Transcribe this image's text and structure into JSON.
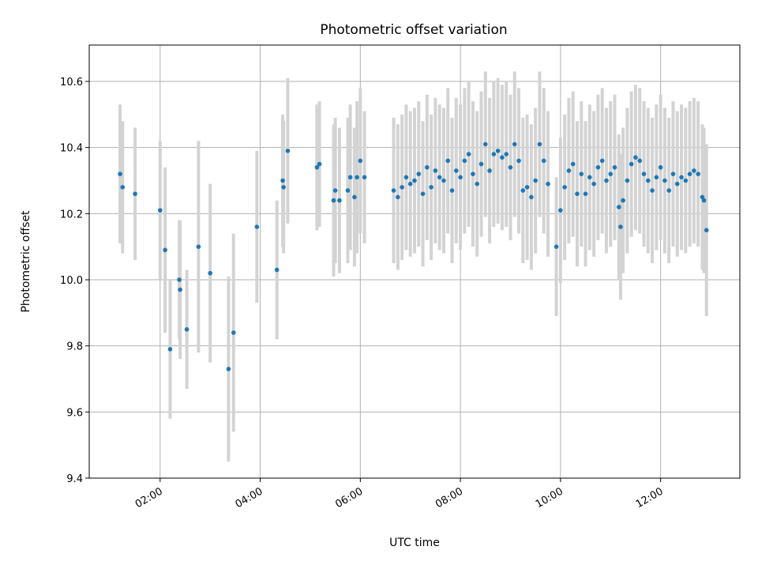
{
  "chart_data": {
    "type": "scatter",
    "title": "Photometric offset variation",
    "xlabel": "UTC time",
    "ylabel": "Photometric offset",
    "grid": true,
    "xlim": [
      "00:35",
      "13:35"
    ],
    "ylim": [
      9.4,
      10.71
    ],
    "x_ticks": [
      "02:00",
      "04:00",
      "06:00",
      "08:00",
      "10:00",
      "12:00"
    ],
    "y_ticks": [
      "9.4",
      "9.6",
      "9.8",
      "10.0",
      "10.2",
      "10.4",
      "10.6"
    ],
    "colors": {
      "point": "#1f77b4",
      "errorbar": "#d3d3d3",
      "grid": "#b0b0b0"
    },
    "series": [
      {
        "points": [
          {
            "t": "01:12",
            "y": 10.32,
            "err": 0.21
          },
          {
            "t": "01:15",
            "y": 10.28,
            "err": 0.2
          },
          {
            "t": "01:30",
            "y": 10.26,
            "err": 0.2
          },
          {
            "t": "02:00",
            "y": 10.21,
            "err": 0.21
          },
          {
            "t": "02:06",
            "y": 10.09,
            "err": 0.25
          },
          {
            "t": "02:12",
            "y": 9.79,
            "err": 0.21
          },
          {
            "t": "02:23",
            "y": 10.0,
            "err": 0.18
          },
          {
            "t": "02:24",
            "y": 9.97,
            "err": 0.21
          },
          {
            "t": "02:32",
            "y": 9.85,
            "err": 0.18
          },
          {
            "t": "02:46",
            "y": 10.1,
            "err": 0.32
          },
          {
            "t": "03:00",
            "y": 10.02,
            "err": 0.27
          },
          {
            "t": "03:22",
            "y": 9.73,
            "err": 0.28
          },
          {
            "t": "03:28",
            "y": 9.84,
            "err": 0.3
          },
          {
            "t": "03:56",
            "y": 10.16,
            "err": 0.23
          },
          {
            "t": "04:20",
            "y": 10.03,
            "err": 0.21
          },
          {
            "t": "04:27",
            "y": 10.3,
            "err": 0.2
          },
          {
            "t": "04:28",
            "y": 10.28,
            "err": 0.2
          },
          {
            "t": "04:33",
            "y": 10.39,
            "err": 0.22
          },
          {
            "t": "05:08",
            "y": 10.34,
            "err": 0.19
          },
          {
            "t": "05:11",
            "y": 10.35,
            "err": 0.19
          },
          {
            "t": "05:28",
            "y": 10.24,
            "err": 0.23
          },
          {
            "t": "05:30",
            "y": 10.27,
            "err": 0.22
          },
          {
            "t": "05:35",
            "y": 10.24,
            "err": 0.22
          },
          {
            "t": "05:45",
            "y": 10.27,
            "err": 0.22
          },
          {
            "t": "05:48",
            "y": 10.31,
            "err": 0.22
          },
          {
            "t": "05:53",
            "y": 10.25,
            "err": 0.21
          },
          {
            "t": "05:56",
            "y": 10.31,
            "err": 0.23
          },
          {
            "t": "06:00",
            "y": 10.36,
            "err": 0.22
          },
          {
            "t": "06:05",
            "y": 10.31,
            "err": 0.2
          },
          {
            "t": "06:40",
            "y": 10.27,
            "err": 0.22
          },
          {
            "t": "06:45",
            "y": 10.25,
            "err": 0.22
          },
          {
            "t": "06:50",
            "y": 10.28,
            "err": 0.22
          },
          {
            "t": "06:55",
            "y": 10.31,
            "err": 0.22
          },
          {
            "t": "07:00",
            "y": 10.29,
            "err": 0.22
          },
          {
            "t": "07:05",
            "y": 10.3,
            "err": 0.22
          },
          {
            "t": "07:10",
            "y": 10.32,
            "err": 0.22
          },
          {
            "t": "07:15",
            "y": 10.26,
            "err": 0.22
          },
          {
            "t": "07:20",
            "y": 10.34,
            "err": 0.22
          },
          {
            "t": "07:25",
            "y": 10.28,
            "err": 0.22
          },
          {
            "t": "07:30",
            "y": 10.33,
            "err": 0.22
          },
          {
            "t": "07:35",
            "y": 10.31,
            "err": 0.22
          },
          {
            "t": "07:40",
            "y": 10.3,
            "err": 0.22
          },
          {
            "t": "07:45",
            "y": 10.36,
            "err": 0.22
          },
          {
            "t": "07:50",
            "y": 10.27,
            "err": 0.22
          },
          {
            "t": "07:55",
            "y": 10.33,
            "err": 0.22
          },
          {
            "t": "08:00",
            "y": 10.31,
            "err": 0.22
          },
          {
            "t": "08:05",
            "y": 10.36,
            "err": 0.22
          },
          {
            "t": "08:10",
            "y": 10.38,
            "err": 0.22
          },
          {
            "t": "08:15",
            "y": 10.32,
            "err": 0.22
          },
          {
            "t": "08:20",
            "y": 10.29,
            "err": 0.22
          },
          {
            "t": "08:25",
            "y": 10.35,
            "err": 0.22
          },
          {
            "t": "08:30",
            "y": 10.41,
            "err": 0.22
          },
          {
            "t": "08:35",
            "y": 10.33,
            "err": 0.22
          },
          {
            "t": "08:40",
            "y": 10.38,
            "err": 0.22
          },
          {
            "t": "08:45",
            "y": 10.39,
            "err": 0.22
          },
          {
            "t": "08:50",
            "y": 10.37,
            "err": 0.22
          },
          {
            "t": "08:55",
            "y": 10.38,
            "err": 0.22
          },
          {
            "t": "09:00",
            "y": 10.34,
            "err": 0.22
          },
          {
            "t": "09:05",
            "y": 10.41,
            "err": 0.22
          },
          {
            "t": "09:10",
            "y": 10.36,
            "err": 0.22
          },
          {
            "t": "09:15",
            "y": 10.27,
            "err": 0.22
          },
          {
            "t": "09:20",
            "y": 10.28,
            "err": 0.22
          },
          {
            "t": "09:25",
            "y": 10.25,
            "err": 0.22
          },
          {
            "t": "09:30",
            "y": 10.3,
            "err": 0.22
          },
          {
            "t": "09:35",
            "y": 10.41,
            "err": 0.22
          },
          {
            "t": "09:40",
            "y": 10.36,
            "err": 0.22
          },
          {
            "t": "09:45",
            "y": 10.29,
            "err": 0.22
          },
          {
            "t": "09:55",
            "y": 10.1,
            "err": 0.21
          },
          {
            "t": "10:00",
            "y": 10.21,
            "err": 0.22
          },
          {
            "t": "10:05",
            "y": 10.28,
            "err": 0.22
          },
          {
            "t": "10:10",
            "y": 10.33,
            "err": 0.22
          },
          {
            "t": "10:15",
            "y": 10.35,
            "err": 0.22
          },
          {
            "t": "10:20",
            "y": 10.26,
            "err": 0.22
          },
          {
            "t": "10:25",
            "y": 10.32,
            "err": 0.22
          },
          {
            "t": "10:30",
            "y": 10.26,
            "err": 0.22
          },
          {
            "t": "10:35",
            "y": 10.31,
            "err": 0.22
          },
          {
            "t": "10:40",
            "y": 10.29,
            "err": 0.22
          },
          {
            "t": "10:45",
            "y": 10.34,
            "err": 0.22
          },
          {
            "t": "10:50",
            "y": 10.36,
            "err": 0.22
          },
          {
            "t": "10:55",
            "y": 10.3,
            "err": 0.22
          },
          {
            "t": "11:00",
            "y": 10.32,
            "err": 0.22
          },
          {
            "t": "11:05",
            "y": 10.34,
            "err": 0.22
          },
          {
            "t": "11:10",
            "y": 10.22,
            "err": 0.22
          },
          {
            "t": "11:12",
            "y": 10.16,
            "err": 0.22
          },
          {
            "t": "11:15",
            "y": 10.24,
            "err": 0.22
          },
          {
            "t": "11:20",
            "y": 10.3,
            "err": 0.22
          },
          {
            "t": "11:25",
            "y": 10.35,
            "err": 0.22
          },
          {
            "t": "11:30",
            "y": 10.37,
            "err": 0.22
          },
          {
            "t": "11:35",
            "y": 10.36,
            "err": 0.22
          },
          {
            "t": "11:40",
            "y": 10.32,
            "err": 0.22
          },
          {
            "t": "11:45",
            "y": 10.3,
            "err": 0.22
          },
          {
            "t": "11:50",
            "y": 10.27,
            "err": 0.22
          },
          {
            "t": "11:55",
            "y": 10.31,
            "err": 0.22
          },
          {
            "t": "12:00",
            "y": 10.34,
            "err": 0.22
          },
          {
            "t": "12:05",
            "y": 10.3,
            "err": 0.22
          },
          {
            "t": "12:10",
            "y": 10.27,
            "err": 0.22
          },
          {
            "t": "12:15",
            "y": 10.32,
            "err": 0.22
          },
          {
            "t": "12:20",
            "y": 10.29,
            "err": 0.22
          },
          {
            "t": "12:25",
            "y": 10.31,
            "err": 0.22
          },
          {
            "t": "12:30",
            "y": 10.3,
            "err": 0.22
          },
          {
            "t": "12:35",
            "y": 10.32,
            "err": 0.22
          },
          {
            "t": "12:40",
            "y": 10.33,
            "err": 0.22
          },
          {
            "t": "12:45",
            "y": 10.32,
            "err": 0.22
          },
          {
            "t": "12:50",
            "y": 10.25,
            "err": 0.22
          },
          {
            "t": "12:52",
            "y": 10.24,
            "err": 0.22
          },
          {
            "t": "12:55",
            "y": 10.15,
            "err": 0.26
          }
        ]
      }
    ]
  }
}
